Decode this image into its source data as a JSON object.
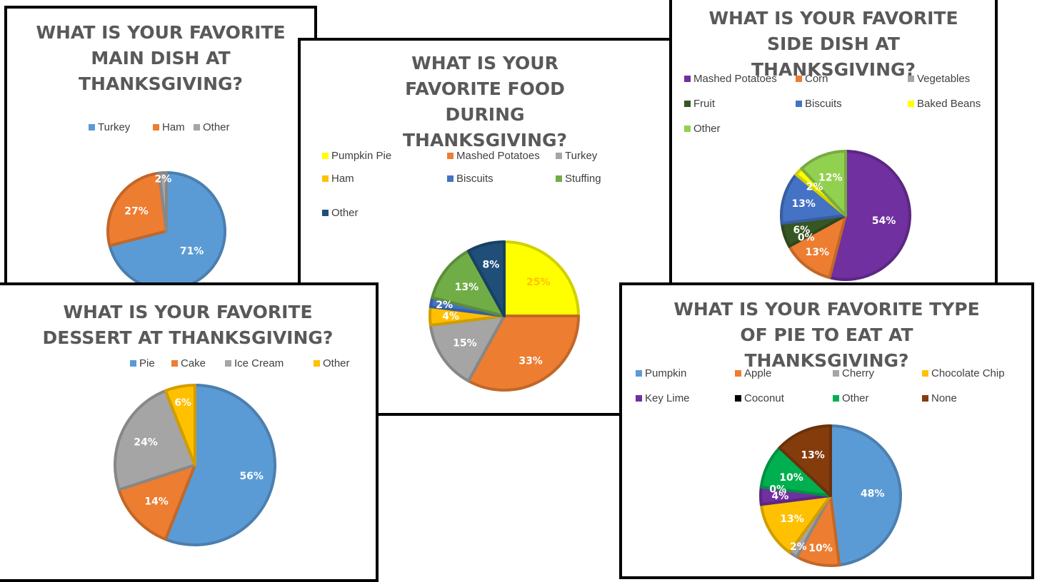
{
  "chart_data": [
    {
      "type": "pie",
      "title": "WHAT IS YOUR FAVORITE MAIN DISH AT THANKSGIVING?",
      "categories": [
        "Turkey",
        "Ham",
        "Other"
      ],
      "values": [
        71,
        27,
        2
      ],
      "labels": [
        "71%",
        "27%",
        "2%"
      ],
      "colors": [
        "#5b9bd5",
        "#ed7d31",
        "#a5a5a5"
      ],
      "legend": "top",
      "start_angle": 0
    },
    {
      "type": "pie",
      "title": "WHAT IS YOUR FAVORITE FOOD DURING THANKSGIVING?",
      "categories": [
        "Pumpkin Pie",
        "Mashed Potatoes",
        "Turkey",
        "Ham",
        "Biscuits",
        "Stuffing",
        "Other"
      ],
      "values": [
        25,
        33,
        15,
        4,
        2,
        13,
        8
      ],
      "labels": [
        "25%",
        "33%",
        "15%",
        "4%",
        "2%",
        "13%",
        "8%"
      ],
      "colors": [
        "#ffff00",
        "#ed7d31",
        "#a5a5a5",
        "#ffc000",
        "#4472c4",
        "#70ad47",
        "#1f4e79"
      ],
      "legend": "top",
      "start_angle": 0
    },
    {
      "type": "pie",
      "title": "WHAT IS YOUR FAVORITE SIDE DISH AT THANKSGIVING?",
      "categories": [
        "Mashed Potatoes",
        "Corn",
        "Vegetables",
        "Fruit",
        "Biscuits",
        "Baked Beans",
        "Other"
      ],
      "values": [
        54,
        13,
        0,
        6,
        13,
        2,
        12
      ],
      "labels": [
        "54%",
        "13%",
        "0%",
        "6%",
        "13%",
        "2%",
        "12%"
      ],
      "colors": [
        "#7030a0",
        "#ed7d31",
        "#a5a5a5",
        "#375623",
        "#4472c4",
        "#ffff00",
        "#92d050"
      ],
      "legend": "top",
      "start_angle": 0
    },
    {
      "type": "pie",
      "title": "WHAT IS YOUR FAVORITE DESSERT AT THANKSGIVING?",
      "categories": [
        "Pie",
        "Cake",
        "Ice Cream",
        "Other"
      ],
      "values": [
        56,
        14,
        24,
        6
      ],
      "labels": [
        "56%",
        "14%",
        "24%",
        "6%"
      ],
      "colors": [
        "#5b9bd5",
        "#ed7d31",
        "#a5a5a5",
        "#ffc000"
      ],
      "legend": "top",
      "start_angle": 0
    },
    {
      "type": "pie",
      "title": "WHAT IS YOUR FAVORITE TYPE OF PIE TO EAT AT THANKSGIVING?",
      "categories": [
        "Pumpkin",
        "Apple",
        "Cherry",
        "Chocolate Chip",
        "Key Lime",
        "Coconut",
        "Other",
        "None"
      ],
      "values": [
        48,
        10,
        2,
        13,
        4,
        0,
        10,
        13
      ],
      "labels": [
        "48%",
        "10%",
        "2%",
        "13%",
        "4%",
        "0%",
        "10%",
        "13%"
      ],
      "colors": [
        "#5b9bd5",
        "#ed7d31",
        "#a5a5a5",
        "#ffc000",
        "#7030a0",
        "#000000",
        "#00b050",
        "#843c0c"
      ],
      "legend": "top",
      "start_angle": 0
    }
  ]
}
